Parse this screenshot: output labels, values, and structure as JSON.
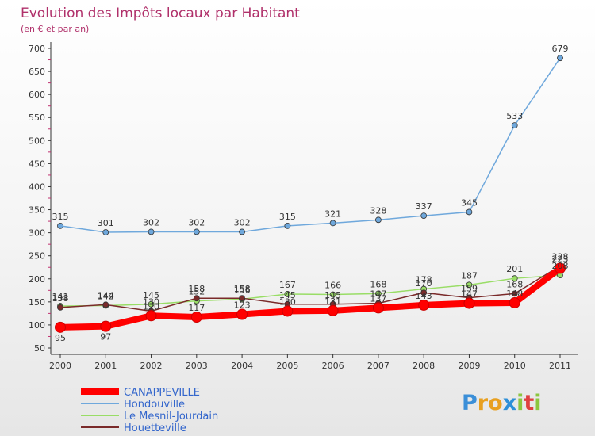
{
  "chart_data": {
    "type": "line",
    "title": "Evolution des Impôts locaux par Habitant",
    "subtitle": "(en € et par an)",
    "xlabel": "",
    "ylabel": "",
    "ylim": [
      50,
      700
    ],
    "yticks": [
      50,
      100,
      150,
      200,
      250,
      300,
      350,
      400,
      450,
      500,
      550,
      600,
      650,
      700
    ],
    "categories": [
      "2000",
      "2001",
      "2002",
      "2003",
      "2004",
      "2005",
      "2006",
      "2007",
      "2008",
      "2009",
      "2010",
      "2011"
    ],
    "series": [
      {
        "name": "CANAPPEVILLE",
        "color": "#ff0000",
        "values": [
          95,
          97,
          120,
          117,
          123,
          130,
          131,
          137,
          143,
          147,
          148,
          223
        ]
      },
      {
        "name": "Hondouville",
        "color": "#6fa8dc",
        "values": [
          315,
          301,
          302,
          302,
          302,
          315,
          321,
          328,
          337,
          345,
          533,
          679
        ]
      },
      {
        "name": "Le Mesnil-Jourdain",
        "color": "#99dd66",
        "values": [
          141,
          142,
          145,
          152,
          156,
          167,
          166,
          168,
          178,
          187,
          201,
          208
        ]
      },
      {
        "name": "Houetteville",
        "color": "#7a2a2a",
        "values": [
          138,
          144,
          130,
          158,
          158,
          145,
          145,
          147,
          170,
          159,
          168,
          228
        ]
      }
    ],
    "legend": "bottom-left",
    "grid": false
  },
  "brand": {
    "letters": [
      "P",
      "r",
      "o",
      "x",
      "i",
      "t",
      "i"
    ],
    "colors": [
      "#3b8fd8",
      "#e8a020",
      "#e8a020",
      "#2d8fd8",
      "#8cc63f",
      "#e04040",
      "#8cc63f"
    ]
  }
}
